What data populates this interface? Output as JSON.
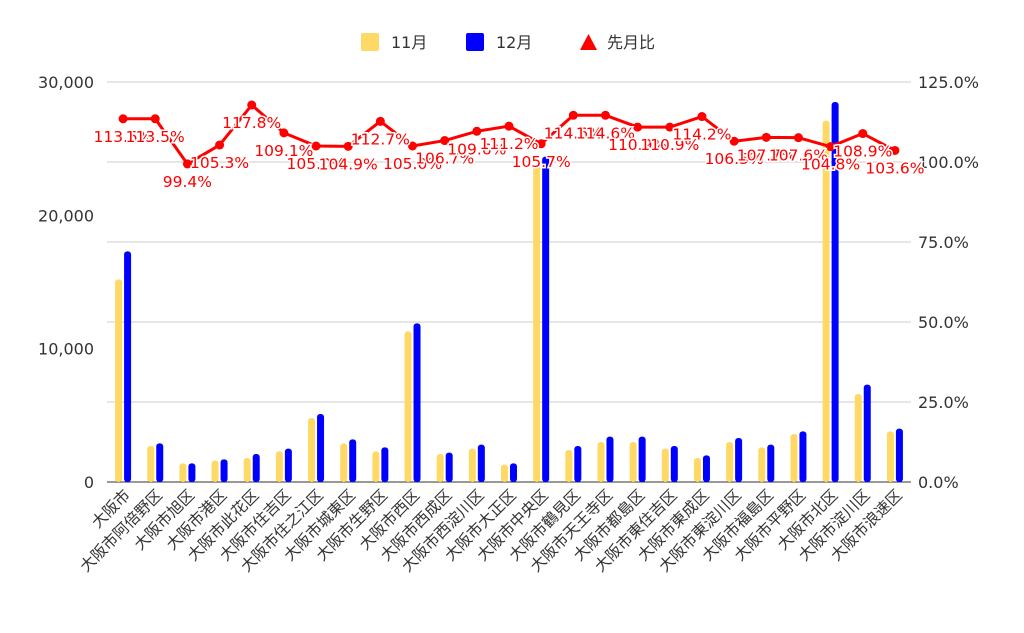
{
  "chart_data": {
    "type": "bar",
    "categories": [
      "大阪市",
      "大阪市阿倍野区",
      "大阪市旭区",
      "大阪市港区",
      "大阪市此花区",
      "大阪市住吉区",
      "大阪市住之江区",
      "大阪市城東区",
      "大阪市生野区",
      "大阪市西区",
      "大阪市西成区",
      "大阪市西淀川区",
      "大阪市大正区",
      "大阪市中央区",
      "大阪市鶴見区",
      "大阪市天王寺区",
      "大阪市都島区",
      "大阪市東住吉区",
      "大阪市東成区",
      "大阪市東淀川区",
      "大阪市福島区",
      "大阪市平野区",
      "大阪市北区",
      "大阪市淀川区",
      "大阪市浪速区"
    ],
    "series": [
      {
        "name": "11月",
        "axis": "left",
        "color": "#ffd966",
        "values": [
          15200,
          2700,
          1400,
          1600,
          1800,
          2300,
          4800,
          2900,
          2300,
          11300,
          2100,
          2500,
          1300,
          23800,
          2400,
          3000,
          3000,
          2500,
          1800,
          3000,
          2600,
          3600,
          27100,
          6600,
          3800
        ]
      },
      {
        "name": "12月",
        "axis": "left",
        "color": "#0000ff",
        "values": [
          17300,
          2900,
          1400,
          1700,
          2100,
          2500,
          5100,
          3200,
          2600,
          11900,
          2200,
          2800,
          1400,
          24400,
          2700,
          3400,
          3400,
          2700,
          2000,
          3300,
          2800,
          3800,
          28500,
          7300,
          4000
        ]
      },
      {
        "name": "先月比",
        "axis": "right",
        "type": "line",
        "color": "#ff0000",
        "values": [
          113.5,
          113.5,
          99.4,
          105.3,
          117.8,
          109.1,
          105.0,
          104.9,
          112.7,
          105.0,
          106.7,
          109.6,
          111.2,
          105.7,
          114.6,
          114.6,
          110.9,
          110.9,
          114.2,
          106.5,
          107.7,
          107.6,
          104.8,
          108.9,
          103.6
        ],
        "labels": [
          "113.5%",
          "113.5%",
          "99.4%",
          "105.3%",
          "117.8%",
          "109.1%",
          "105.0%",
          "104.9%",
          "112.7%",
          "105.0%",
          "106.7%",
          "109.6%",
          "111.2%",
          "105.7%",
          "114.6%",
          "114.6%",
          "110.9%",
          "110.9%",
          "114.2%",
          "106.5%",
          "107.7%",
          "107.6%",
          "104.8%",
          "108.9%",
          "103.6%"
        ]
      }
    ],
    "left_axis": {
      "min": 0,
      "max": 30000,
      "ticks": [
        "0",
        "10,000",
        "20,000",
        "30,000"
      ],
      "tick_values": [
        0,
        10000,
        20000,
        30000
      ]
    },
    "right_axis": {
      "min": 0,
      "max": 125,
      "ticks": [
        "0.0%",
        "25.0%",
        "50.0%",
        "75.0%",
        "100.0%",
        "125.0%"
      ],
      "tick_values": [
        0,
        25,
        50,
        75,
        100,
        125
      ]
    },
    "legend_position": "top-center",
    "grid": true,
    "title": "",
    "xlabel": "",
    "ylabel": ""
  }
}
